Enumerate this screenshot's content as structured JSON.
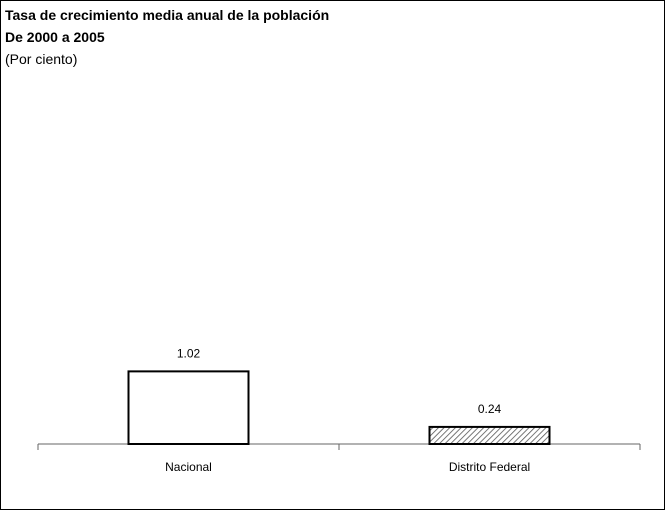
{
  "chart_data": {
    "type": "bar",
    "title": "Tasa de crecimiento media anual de la población",
    "title_line2": "De 2000 a 2005",
    "subtitle": "(Por ciento)",
    "categories": [
      "Nacional",
      "Distrito Federal"
    ],
    "series": [
      {
        "values": [
          1.02,
          0.24
        ]
      }
    ],
    "data_labels": [
      "1.02",
      "0.24"
    ],
    "bar_fills": [
      "none",
      "diagonal-hatch"
    ],
    "ylim": [
      0,
      5
    ],
    "grid": false,
    "legend": "none",
    "colors": {
      "bar_stroke": "#000000",
      "hatch": "#555555",
      "axis": "#666666"
    }
  }
}
